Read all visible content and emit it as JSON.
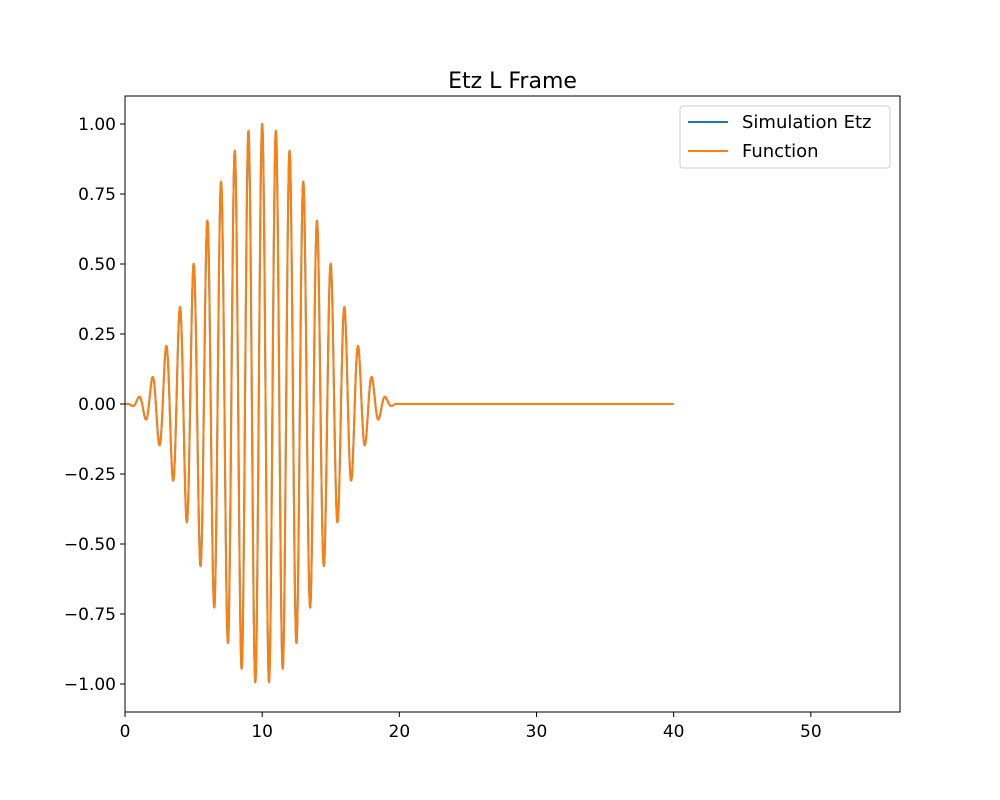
{
  "chart_data": {
    "type": "line",
    "title": "Etz L Frame",
    "xlabel": "",
    "ylabel": "",
    "xlim": [
      0,
      56.5
    ],
    "ylim": [
      -1.1,
      1.1
    ],
    "xticks": [
      0,
      10,
      20,
      30,
      40,
      50
    ],
    "xtick_labels": [
      "0",
      "10",
      "20",
      "30",
      "40",
      "50"
    ],
    "yticks": [
      1.0,
      0.75,
      0.5,
      0.25,
      0.0,
      -0.25,
      -0.5,
      -0.75,
      -1.0
    ],
    "ytick_labels": [
      "1.00",
      "0.75",
      "0.50",
      "0.25",
      "0.00",
      "−0.25",
      "−0.50",
      "−0.75",
      "−1.00"
    ],
    "grid": false,
    "legend_position": "upper-right",
    "x_range": [
      0,
      40
    ],
    "pulse": {
      "center": 10,
      "half_width": 10,
      "period": 1,
      "peak": 1.0,
      "envelope": "sin^2"
    },
    "series": [
      {
        "name": "Simulation Etz",
        "color": "#1f77b4"
      },
      {
        "name": "Function",
        "color": "#ff7f0e"
      }
    ]
  }
}
